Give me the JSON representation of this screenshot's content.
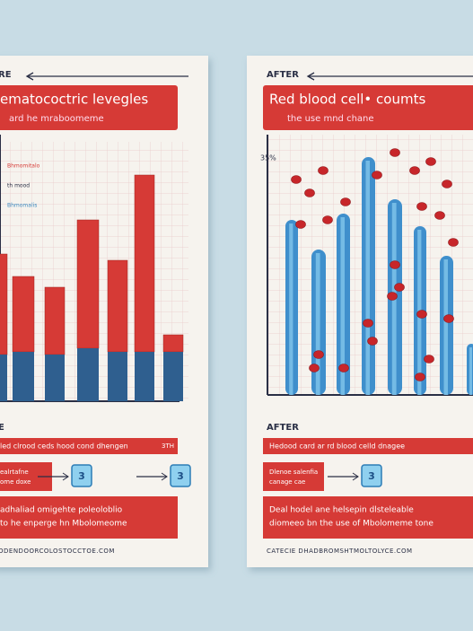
{
  "panels": [
    {
      "heading": "RE",
      "title": "ematococtric levegles",
      "subtitle": "ard he mraboomeme",
      "legend": [
        "Bhmomitalo",
        "th mood",
        "Bhmomalis"
      ],
      "axis_note": null,
      "section": "E",
      "strip": "led clrood ceds hood cond dhengen",
      "strip_note": "3TH",
      "box": [
        "ealrtafne",
        "ome doxe"
      ],
      "badges": [
        "3",
        "3"
      ],
      "note": [
        "adhaliad omigehte poleoloblio",
        "to he enperge hn Mbolomeome"
      ],
      "footer": "ODENDOORCOLOSTOCCTOE.COM"
    },
    {
      "heading": "AFTER",
      "title": "Red blood cell• coumts",
      "subtitle": "the use mnd chane",
      "legend": [],
      "axis_note": "35%",
      "section": "AFTER",
      "strip": "Hedood card ar rd blood celld dnagee",
      "strip_note": null,
      "box": [
        "Dlenoe salenfia",
        "canage cae"
      ],
      "badges": [
        "3"
      ],
      "note": [
        "Deal hodel ane helsepin dlsteleable",
        "diomeeo bn the use of Mbolomeme tone"
      ],
      "footer": "CATECIE DHADBROMSHTMOLTOLYCE.COM"
    }
  ]
}
